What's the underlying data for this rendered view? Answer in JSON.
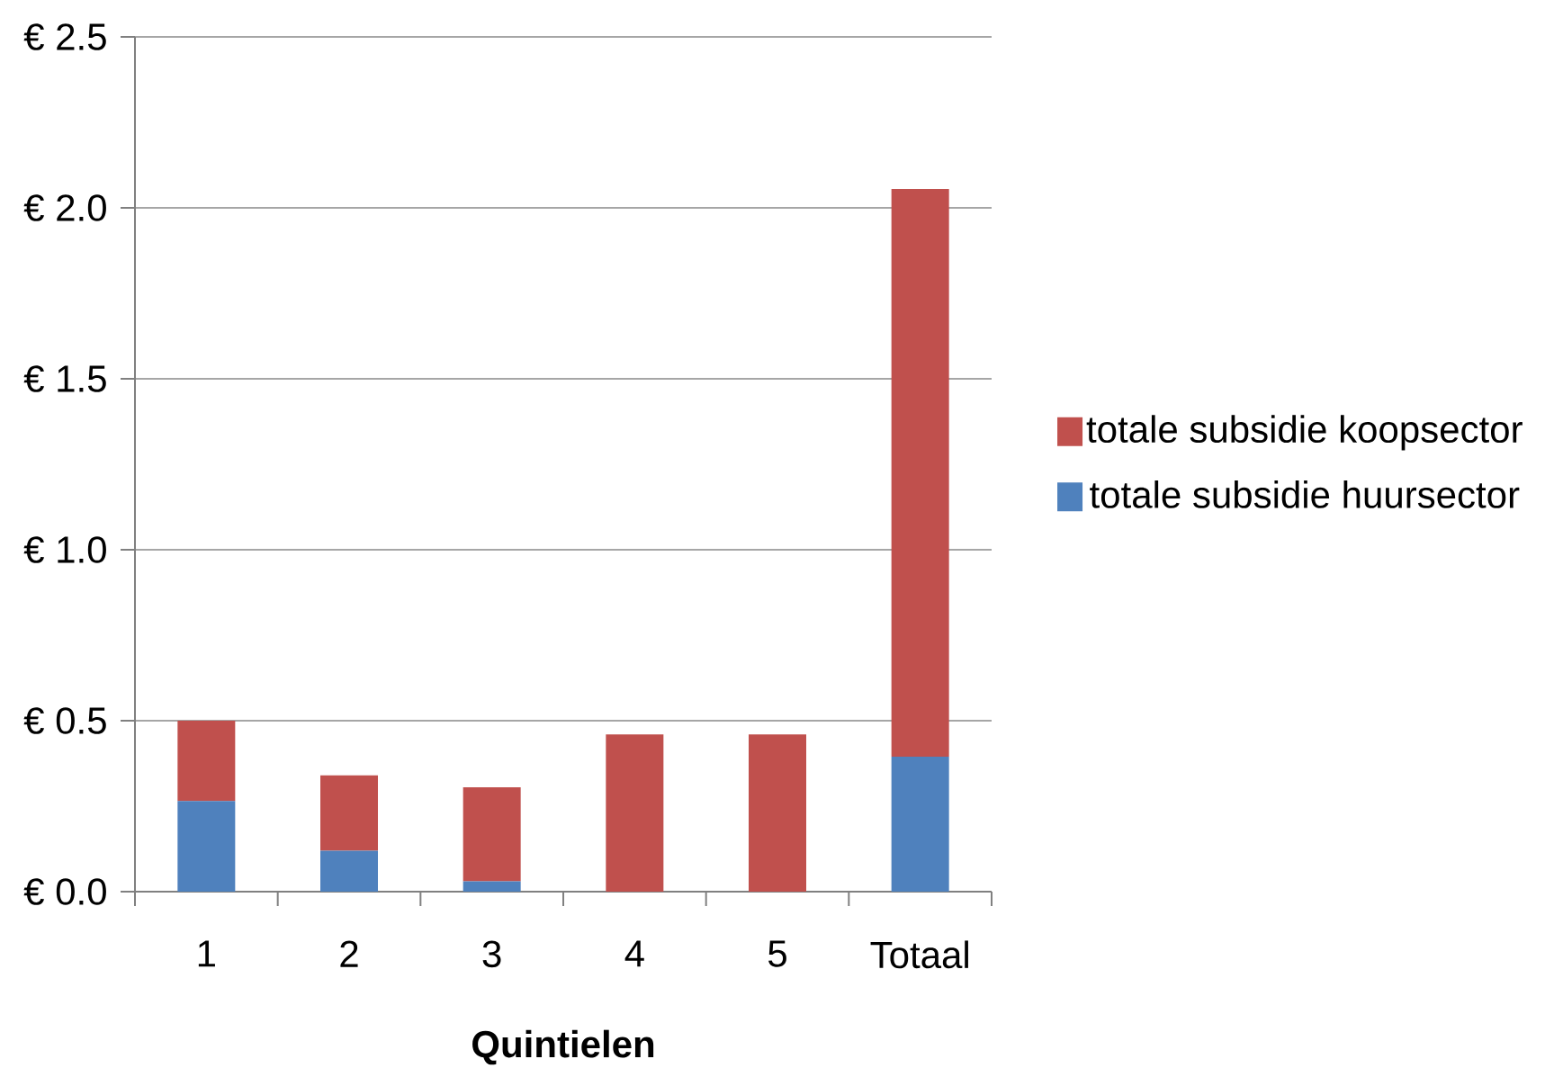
{
  "chart_data": {
    "type": "bar",
    "stacked": true,
    "xlabel": "**Quintielen**",
    "categories": [
      "1",
      "2",
      "3",
      "4",
      "5",
      "Totaal"
    ],
    "series": [
      {
        "name": "totale subsidie huursector",
        "color": "#4f81bd",
        "values": [
          0.265,
          0.12,
          0.03,
          0,
          0,
          0.395
        ]
      },
      {
        "name": "totale subsidie koopsector",
        "color": "#c0504d",
        "values": [
          0.235,
          0.22,
          0.275,
          0.46,
          0.46,
          1.66
        ]
      }
    ],
    "ylim": [
      0,
      2.5
    ],
    "yticks": [
      {
        "value": 0,
        "label": "€ 0.0"
      },
      {
        "value": 0.5,
        "label": "€ 0.5"
      },
      {
        "value": 1.0,
        "label": "€ 1.0"
      },
      {
        "value": 1.5,
        "label": "€ 1.5"
      },
      {
        "value": 2.0,
        "label": "€ 2.0"
      },
      {
        "value": 2.5,
        "label": "€ 2.5"
      }
    ],
    "grid": "y",
    "legend": "right"
  }
}
